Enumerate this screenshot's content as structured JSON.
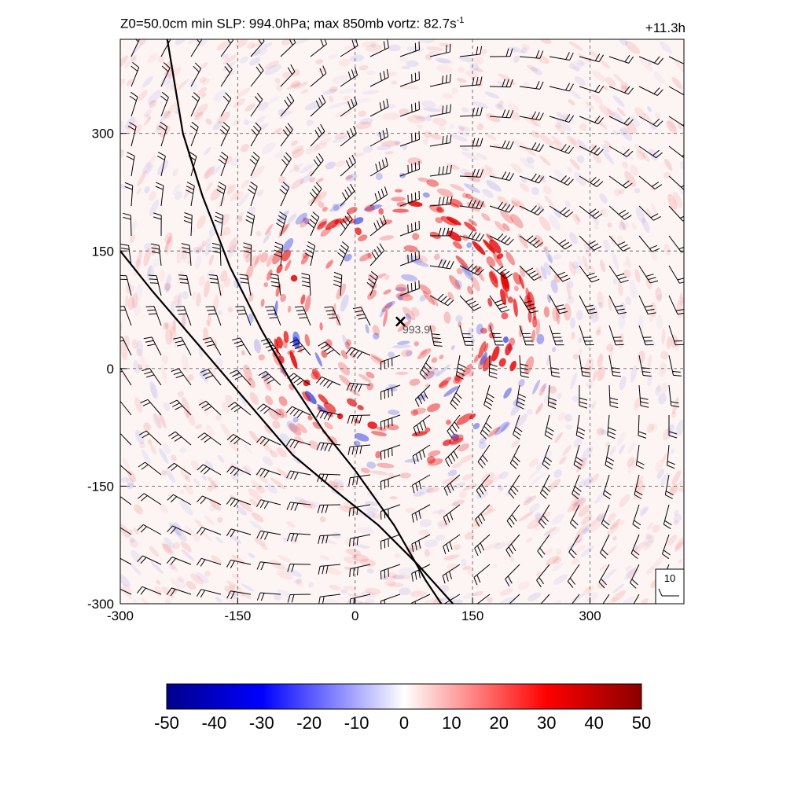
{
  "header": {
    "title_main": "Z0=50.0cm  min SLP: 994.0hPa; max 850mb vortz:  82.7s",
    "title_exp": "-1",
    "time_label": "+11.3h"
  },
  "chart_data": {
    "type": "heatmap",
    "title": "Z0=50.0cm  min SLP: 994.0hPa; max 850mb vortz:  82.7s-1",
    "variable": "850mb relative vorticity",
    "x": {
      "range": [
        -300,
        420
      ],
      "ticks": [
        -300,
        -150,
        0,
        150,
        300
      ],
      "label": ""
    },
    "y": {
      "range": [
        -300,
        420
      ],
      "ticks": [
        -300,
        -150,
        0,
        150,
        300
      ],
      "label": ""
    },
    "grid": true,
    "colorbar": {
      "min": -50,
      "max": 50,
      "ticks": [
        -50,
        -40,
        -30,
        -20,
        -10,
        0,
        10,
        20,
        30,
        40,
        50
      ],
      "colors": [
        "#00008b",
        "#0000ff",
        "#ffffff",
        "#ff0000",
        "#8b0000"
      ]
    },
    "storm_center": {
      "x": 58,
      "y": 60,
      "marker": "×",
      "label": "993.9"
    },
    "coastline_1": [
      [
        -240,
        420
      ],
      [
        -220,
        300
      ],
      [
        -195,
        220
      ],
      [
        -160,
        130
      ],
      [
        -120,
        50
      ],
      [
        -80,
        -20
      ],
      [
        -40,
        -80
      ],
      [
        0,
        -130
      ],
      [
        50,
        -200
      ],
      [
        90,
        -270
      ],
      [
        110,
        -300
      ]
    ],
    "coastline_2": [
      [
        -300,
        150
      ],
      [
        -260,
        100
      ],
      [
        -200,
        30
      ],
      [
        -140,
        -40
      ],
      [
        -80,
        -110
      ],
      [
        -20,
        -160
      ],
      [
        30,
        -200
      ],
      [
        80,
        -250
      ],
      [
        125,
        -300
      ]
    ],
    "wind_barbs": {
      "spacing": 38,
      "reference_speed": "10",
      "legend_position": "bottom-right",
      "circulation": "cyclonic"
    }
  }
}
